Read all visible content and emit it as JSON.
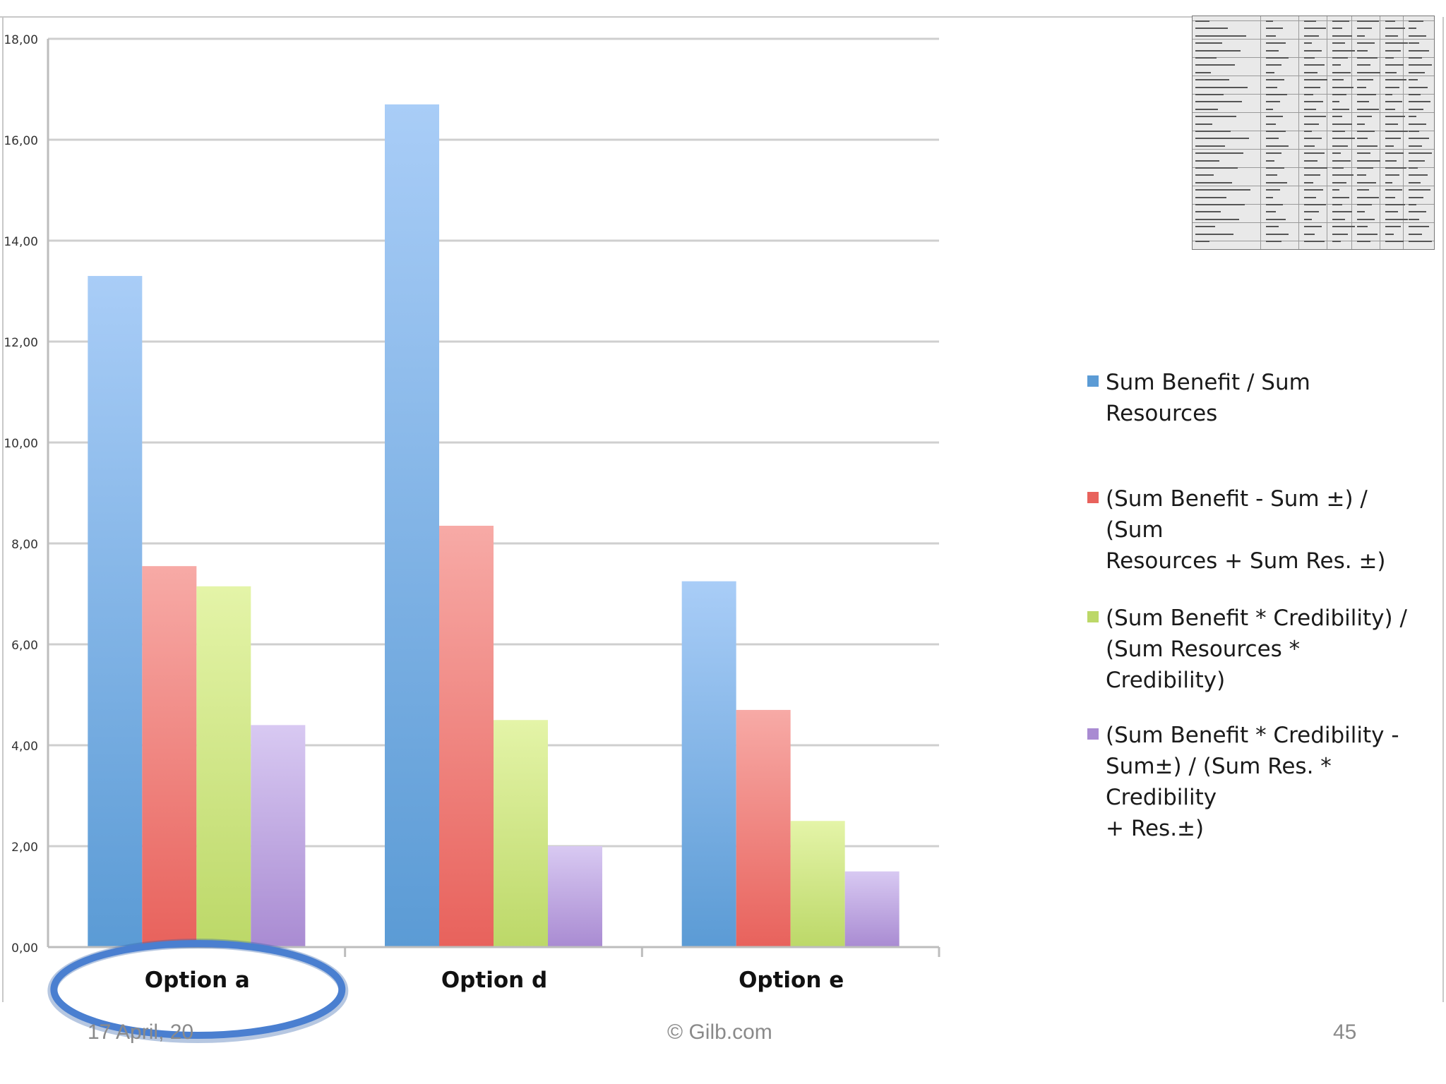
{
  "chart_data": {
    "type": "bar",
    "categories": [
      "Option a",
      "Option d",
      "Option e"
    ],
    "series": [
      {
        "name": "Sum Benefit / Sum Resources",
        "values": [
          13.3,
          16.7,
          7.25
        ]
      },
      {
        "name": "(Sum Benefit - Sum ±) / (Sum Resources + Sum Res. ±)",
        "values": [
          7.55,
          8.35,
          4.7
        ]
      },
      {
        "name": "(Sum Benefit * Credibility) / (Sum Resources * Credibility)",
        "values": [
          7.15,
          4.5,
          2.5
        ]
      },
      {
        "name": "(Sum Benefit * Credibility - Sum±) / (Sum Res. * Credibility + Res.±)",
        "values": [
          4.4,
          2.0,
          1.5
        ]
      }
    ],
    "y_ticks": [
      "0,00",
      "2,00",
      "4,00",
      "6,00",
      "8,00",
      "10,00",
      "12,00",
      "14,00",
      "16,00",
      "18,00"
    ],
    "ylim": [
      0,
      18
    ],
    "grid": true,
    "legend": "right",
    "highlighted_category": "Option a",
    "colors": {
      "series": [
        "#5b9bd5",
        "#e8625c",
        "#bcd868",
        "#a98bd2"
      ],
      "series_light": [
        "#a9cdf7",
        "#f7aaa6",
        "#e4f4a8",
        "#d8c9f2"
      ],
      "highlight_ring": "#4a7fd0"
    }
  },
  "legend": {
    "items": [
      {
        "lines": [
          "Sum Benefit / Sum Resources"
        ]
      },
      {
        "lines": [
          "(Sum Benefit - Sum ±) / (Sum",
          "Resources + Sum Res. ±)"
        ]
      },
      {
        "lines": [
          "(Sum Benefit * Credibility) /",
          "(Sum Resources * Credibility)"
        ]
      },
      {
        "lines": [
          "(Sum Benefit * Credibility -",
          "Sum±) / (Sum Res. * Credibility",
          "+ Res.±)"
        ]
      }
    ]
  },
  "footer": {
    "date": "17 April, 20",
    "copyright": "© Gilb.com",
    "page": "45"
  }
}
